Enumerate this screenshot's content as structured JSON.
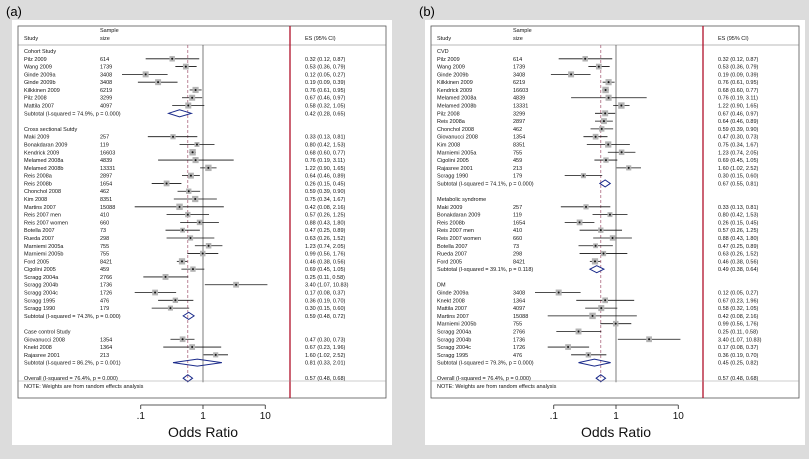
{
  "chart_data": [
    {
      "type": "forest",
      "panel_label": "(a)",
      "xlabel": "Odds Ratio",
      "x_ticks": [
        ".1",
        "1",
        "10"
      ],
      "xlim": [
        0.05,
        20
      ],
      "reference_value": 1,
      "overall_dashed_line": 0.57,
      "header": {
        "study": "Study",
        "size": "Sample size",
        "es": "ES (95% CI)"
      },
      "note": "NOTE: Weights are from random effects analysis",
      "groups": [
        {
          "name": "Cohort Study",
          "studies": [
            {
              "study": "Pilz 2009",
              "size": "614",
              "es": 0.32,
              "lo": 0.12,
              "hi": 0.87,
              "label": "0.32 (0.12, 0.87)"
            },
            {
              "study": "Wang 2009",
              "size": "1739",
              "es": 0.53,
              "lo": 0.36,
              "hi": 0.79,
              "label": "0.53 (0.36, 0.79)"
            },
            {
              "study": "Ginde 2009a",
              "size": "3408",
              "es": 0.12,
              "lo": 0.05,
              "hi": 0.27,
              "label": "0.12 (0.05, 0.27)"
            },
            {
              "study": "Ginde 2009b",
              "size": "3408",
              "es": 0.19,
              "lo": 0.09,
              "hi": 0.39,
              "label": "0.19 (0.09, 0.39)"
            },
            {
              "study": "Kilkkinen 2009",
              "size": "6219",
              "es": 0.76,
              "lo": 0.61,
              "hi": 0.95,
              "label": "0.76 (0.61, 0.95)"
            },
            {
              "study": "Pilz 2008",
              "size": "3299",
              "es": 0.67,
              "lo": 0.46,
              "hi": 0.97,
              "label": "0.67 (0.46, 0.97)"
            },
            {
              "study": "Mattila 2007",
              "size": "4097",
              "es": 0.58,
              "lo": 0.32,
              "hi": 1.05,
              "label": "0.58 (0.32, 1.05)"
            }
          ],
          "subtotal": {
            "text": "Subtotal  (I-squared = 74.9%, p = 0.000)",
            "es": 0.42,
            "lo": 0.28,
            "hi": 0.65,
            "label": "0.42 (0.28, 0.65)"
          }
        },
        {
          "name": "Cross sectional Sutdy",
          "studies": [
            {
              "study": "Maki 2009",
              "size": "257",
              "es": 0.33,
              "lo": 0.13,
              "hi": 0.81,
              "label": "0.33 (0.13, 0.81)"
            },
            {
              "study": "Bonakdaran 2009",
              "size": "119",
              "es": 0.8,
              "lo": 0.42,
              "hi": 1.53,
              "label": "0.80 (0.42, 1.53)"
            },
            {
              "study": "Kendrick 2009",
              "size": "16603",
              "es": 0.68,
              "lo": 0.6,
              "hi": 0.77,
              "label": "0.68 (0.60, 0.77)"
            },
            {
              "study": "Melamed 2008a",
              "size": "4839",
              "es": 0.76,
              "lo": 0.19,
              "hi": 3.11,
              "label": "0.76 (0.19, 3.11)"
            },
            {
              "study": "Melamed 2008b",
              "size": "13331",
              "es": 1.22,
              "lo": 0.9,
              "hi": 1.65,
              "label": "1.22 (0.90, 1.65)"
            },
            {
              "study": "Reis 2008a",
              "size": "2897",
              "es": 0.64,
              "lo": 0.46,
              "hi": 0.89,
              "label": "0.64 (0.46, 0.89)"
            },
            {
              "study": "Reis 2008b",
              "size": "1654",
              "es": 0.26,
              "lo": 0.15,
              "hi": 0.45,
              "label": "0.26 (0.15, 0.45)"
            },
            {
              "study": "Chonchol 2008",
              "size": "462",
              "es": 0.59,
              "lo": 0.39,
              "hi": 0.9,
              "label": "0.59 (0.39, 0.90)"
            },
            {
              "study": "Kim 2008",
              "size": "8351",
              "es": 0.75,
              "lo": 0.34,
              "hi": 1.67,
              "label": "0.75 (0.34, 1.67)"
            },
            {
              "study": "Martins 2007",
              "size": "15088",
              "es": 0.42,
              "lo": 0.08,
              "hi": 2.16,
              "label": "0.42 (0.08, 2.16)"
            },
            {
              "study": "Reis 2007 men",
              "size": "410",
              "es": 0.57,
              "lo": 0.26,
              "hi": 1.25,
              "label": "0.57 (0.26, 1.25)"
            },
            {
              "study": "Reis 2007 women",
              "size": "660",
              "es": 0.88,
              "lo": 0.43,
              "hi": 1.8,
              "label": "0.88 (0.43, 1.80)"
            },
            {
              "study": "Botella 2007",
              "size": "73",
              "es": 0.47,
              "lo": 0.25,
              "hi": 0.89,
              "label": "0.47 (0.25, 0.89)"
            },
            {
              "study": "Rueda 2007",
              "size": "298",
              "es": 0.63,
              "lo": 0.26,
              "hi": 1.52,
              "label": "0.63 (0.26, 1.52)"
            },
            {
              "study": "Marniemi 2005a",
              "size": "755",
              "es": 1.23,
              "lo": 0.74,
              "hi": 2.05,
              "label": "1.23 (0.74, 2.05)"
            },
            {
              "study": "Marniemi 2005b",
              "size": "755",
              "es": 0.99,
              "lo": 0.56,
              "hi": 1.76,
              "label": "0.99 (0.56, 1.76)"
            },
            {
              "study": "Ford  2005",
              "size": "8421",
              "es": 0.46,
              "lo": 0.38,
              "hi": 0.56,
              "label": "0.46 (0.38, 0.56)"
            },
            {
              "study": "Cigolini 2005",
              "size": "459",
              "es": 0.69,
              "lo": 0.45,
              "hi": 1.05,
              "label": "0.69 (0.45, 1.05)"
            },
            {
              "study": "Scragg  2004a",
              "size": "2766",
              "es": 0.25,
              "lo": 0.11,
              "hi": 0.58,
              "label": "0.25 (0.11, 0.58)"
            },
            {
              "study": "Scragg  2004b",
              "size": "1736",
              "es": 3.4,
              "lo": 1.07,
              "hi": 10.83,
              "label": "3.40 (1.07, 10.83)"
            },
            {
              "study": "Scragg  2004c",
              "size": "1726",
              "es": 0.17,
              "lo": 0.08,
              "hi": 0.37,
              "label": "0.17 (0.08, 0.37)"
            },
            {
              "study": "Scragg  1995",
              "size": "476",
              "es": 0.36,
              "lo": 0.19,
              "hi": 0.7,
              "label": "0.36 (0.19, 0.70)"
            },
            {
              "study": "Scragg  1990",
              "size": "179",
              "es": 0.3,
              "lo": 0.15,
              "hi": 0.6,
              "label": "0.30 (0.15, 0.60)"
            }
          ],
          "subtotal": {
            "text": "Subtotal  (I-squared = 74.3%, p = 0.000)",
            "es": 0.59,
            "lo": 0.48,
            "hi": 0.72,
            "label": "0.59 (0.48, 0.72)"
          }
        },
        {
          "name": "Case control Study",
          "studies": [
            {
              "study": "Giovanucci  2008",
              "size": "1354",
              "es": 0.47,
              "lo": 0.3,
              "hi": 0.73,
              "label": "0.47 (0.30, 0.73)"
            },
            {
              "study": "Knekt  2008",
              "size": "1364",
              "es": 0.67,
              "lo": 0.23,
              "hi": 1.96,
              "label": "0.67 (0.23, 1.96)"
            },
            {
              "study": "Rajasree 2001",
              "size": "213",
              "es": 1.6,
              "lo": 1.02,
              "hi": 2.52,
              "label": "1.60 (1.02, 2.52)"
            }
          ],
          "subtotal": {
            "text": "Subtotal  (I-squared = 86.2%, p = 0.001)",
            "es": 0.81,
            "lo": 0.33,
            "hi": 2.01,
            "label": "0.81 (0.33, 2.01)"
          }
        }
      ],
      "overall": {
        "text": "Overall  (I-squared = 76.4%, p = 0.000)",
        "es": 0.57,
        "lo": 0.48,
        "hi": 0.68,
        "label": "0.57 (0.48, 0.68)"
      }
    },
    {
      "type": "forest",
      "panel_label": "(b)",
      "xlabel": "Odds Ratio",
      "x_ticks": [
        ".1",
        "1",
        "10"
      ],
      "xlim": [
        0.05,
        20
      ],
      "reference_value": 1,
      "overall_dashed_line": 0.57,
      "header": {
        "study": "Study",
        "size": "Sample size",
        "es": "ES (95% CI)"
      },
      "note": "NOTE: Weights are from random effects analysis",
      "groups": [
        {
          "name": "CVD",
          "studies": [
            {
              "study": "Pilz 2009",
              "size": "614",
              "es": 0.32,
              "lo": 0.12,
              "hi": 0.87,
              "label": "0.32 (0.12, 0.87)"
            },
            {
              "study": "Wang 2009",
              "size": "1739",
              "es": 0.53,
              "lo": 0.36,
              "hi": 0.79,
              "label": "0.53 (0.36, 0.79)"
            },
            {
              "study": "Ginde 2009b",
              "size": "3408",
              "es": 0.19,
              "lo": 0.09,
              "hi": 0.39,
              "label": "0.19 (0.09, 0.39)"
            },
            {
              "study": "Kilkkinen 2009",
              "size": "6219",
              "es": 0.76,
              "lo": 0.61,
              "hi": 0.95,
              "label": "0.76 (0.61, 0.95)"
            },
            {
              "study": "Kendrick 2009",
              "size": "16603",
              "es": 0.68,
              "lo": 0.6,
              "hi": 0.77,
              "label": "0.68 (0.60, 0.77)"
            },
            {
              "study": "Melamed 2008a",
              "size": "4839",
              "es": 0.76,
              "lo": 0.19,
              "hi": 3.11,
              "label": "0.76 (0.19, 3.11)"
            },
            {
              "study": "Melamed 2008b",
              "size": "13331",
              "es": 1.22,
              "lo": 0.9,
              "hi": 1.65,
              "label": "1.22 (0.90, 1.65)"
            },
            {
              "study": "Pilz 2008",
              "size": "3299",
              "es": 0.67,
              "lo": 0.46,
              "hi": 0.97,
              "label": "0.67 (0.46, 0.97)"
            },
            {
              "study": "Reis 2008a",
              "size": "2897",
              "es": 0.64,
              "lo": 0.46,
              "hi": 0.89,
              "label": "0.64 (0.46, 0.89)"
            },
            {
              "study": "Chonchol  2008",
              "size": "462",
              "es": 0.59,
              "lo": 0.39,
              "hi": 0.9,
              "label": "0.59 (0.39, 0.90)"
            },
            {
              "study": "Giovanucci  2008",
              "size": "1354",
              "es": 0.47,
              "lo": 0.3,
              "hi": 0.73,
              "label": "0.47 (0.30, 0.73)"
            },
            {
              "study": "Kim  2008",
              "size": "8351",
              "es": 0.75,
              "lo": 0.34,
              "hi": 1.67,
              "label": "0.75 (0.34, 1.67)"
            },
            {
              "study": "Marniemi 2005a",
              "size": "755",
              "es": 1.23,
              "lo": 0.74,
              "hi": 2.05,
              "label": "1.23 (0.74, 2.05)"
            },
            {
              "study": "Cigolini  2005",
              "size": "459",
              "es": 0.69,
              "lo": 0.45,
              "hi": 1.05,
              "label": "0.69 (0.45, 1.05)"
            },
            {
              "study": "Rajasree 2001",
              "size": "213",
              "es": 1.6,
              "lo": 1.02,
              "hi": 2.52,
              "label": "1.60 (1.02, 2.52)"
            },
            {
              "study": "Scragg  1990",
              "size": "179",
              "es": 0.3,
              "lo": 0.15,
              "hi": 0.6,
              "label": "0.30 (0.15, 0.60)"
            }
          ],
          "subtotal": {
            "text": "Subtotal  (I-squared = 74.1%, p = 0.000)",
            "es": 0.67,
            "lo": 0.55,
            "hi": 0.81,
            "label": "0.67 (0.55, 0.81)"
          }
        },
        {
          "name": "Metabolic syndrome",
          "studies": [
            {
              "study": "Maki 2009",
              "size": "257",
              "es": 0.33,
              "lo": 0.13,
              "hi": 0.81,
              "label": "0.33 (0.13, 0.81)"
            },
            {
              "study": "Bonakdaran 2009",
              "size": "119",
              "es": 0.8,
              "lo": 0.42,
              "hi": 1.53,
              "label": "0.80 (0.42, 1.53)"
            },
            {
              "study": "Reis 2008b",
              "size": "1654",
              "es": 0.26,
              "lo": 0.15,
              "hi": 0.45,
              "label": "0.26 (0.15, 0.45)"
            },
            {
              "study": "Reis 2007 men",
              "size": "410",
              "es": 0.57,
              "lo": 0.26,
              "hi": 1.25,
              "label": "0.57 (0.26, 1.25)"
            },
            {
              "study": "Reis 2007 women",
              "size": "660",
              "es": 0.88,
              "lo": 0.43,
              "hi": 1.8,
              "label": "0.88 (0.43, 1.80)"
            },
            {
              "study": "Botella 2007",
              "size": "73",
              "es": 0.47,
              "lo": 0.25,
              "hi": 0.89,
              "label": "0.47 (0.25, 0.89)"
            },
            {
              "study": "Rueda 2007",
              "size": "298",
              "es": 0.63,
              "lo": 0.26,
              "hi": 1.52,
              "label": "0.63 (0.26, 1.52)"
            },
            {
              "study": "Ford  2005",
              "size": "8421",
              "es": 0.46,
              "lo": 0.38,
              "hi": 0.56,
              "label": "0.46 (0.38, 0.56)"
            }
          ],
          "subtotal": {
            "text": "Subtotal  (I-squared = 39.1%, p = 0.118)",
            "es": 0.49,
            "lo": 0.38,
            "hi": 0.64,
            "label": "0.49 (0.38, 0.64)"
          }
        },
        {
          "name": "DM",
          "studies": [
            {
              "study": "Ginde 2009a",
              "size": "3408",
              "es": 0.12,
              "lo": 0.05,
              "hi": 0.27,
              "label": "0.12 (0.05, 0.27)"
            },
            {
              "study": "Knekt  2008",
              "size": "1364",
              "es": 0.67,
              "lo": 0.23,
              "hi": 1.96,
              "label": "0.67 (0.23, 1.96)"
            },
            {
              "study": "Mattila 2007",
              "size": "4097",
              "es": 0.58,
              "lo": 0.32,
              "hi": 1.05,
              "label": "0.58 (0.32, 1.05)"
            },
            {
              "study": "Martins 2007",
              "size": "15088",
              "es": 0.42,
              "lo": 0.08,
              "hi": 2.16,
              "label": "0.42 (0.08, 2.16)"
            },
            {
              "study": "Marniemi 2005b",
              "size": "755",
              "es": 0.99,
              "lo": 0.56,
              "hi": 1.76,
              "label": "0.99 (0.56, 1.76)"
            },
            {
              "study": "Scragg  2004a",
              "size": "2766",
              "es": 0.25,
              "lo": 0.11,
              "hi": 0.58,
              "label": "0.25 (0.11, 0.58)"
            },
            {
              "study": "Scragg  2004b",
              "size": "1736",
              "es": 3.4,
              "lo": 1.07,
              "hi": 10.83,
              "label": "3.40 (1.07, 10.83)"
            },
            {
              "study": "Scragg  2004c",
              "size": "1726",
              "es": 0.17,
              "lo": 0.08,
              "hi": 0.37,
              "label": "0.17 (0.08, 0.37)"
            },
            {
              "study": "Scragg  1995",
              "size": "476",
              "es": 0.36,
              "lo": 0.19,
              "hi": 0.7,
              "label": "0.36 (0.19, 0.70)"
            }
          ],
          "subtotal": {
            "text": "Subtotal  (I-squared = 79.3%, p = 0.000)",
            "es": 0.45,
            "lo": 0.25,
            "hi": 0.82,
            "label": "0.45 (0.25, 0.82)"
          }
        }
      ],
      "overall": {
        "text": "Overall  (I-squared = 76.4%, p = 0.000)",
        "es": 0.57,
        "lo": 0.48,
        "hi": 0.68,
        "label": "0.57 (0.48, 0.68)"
      }
    }
  ],
  "colors": {
    "ref_line": "#b0102a",
    "dashed_line": "#a0506a",
    "box": "#b4b4b4",
    "diamond": "#1a2a8a",
    "text": "#111111"
  }
}
